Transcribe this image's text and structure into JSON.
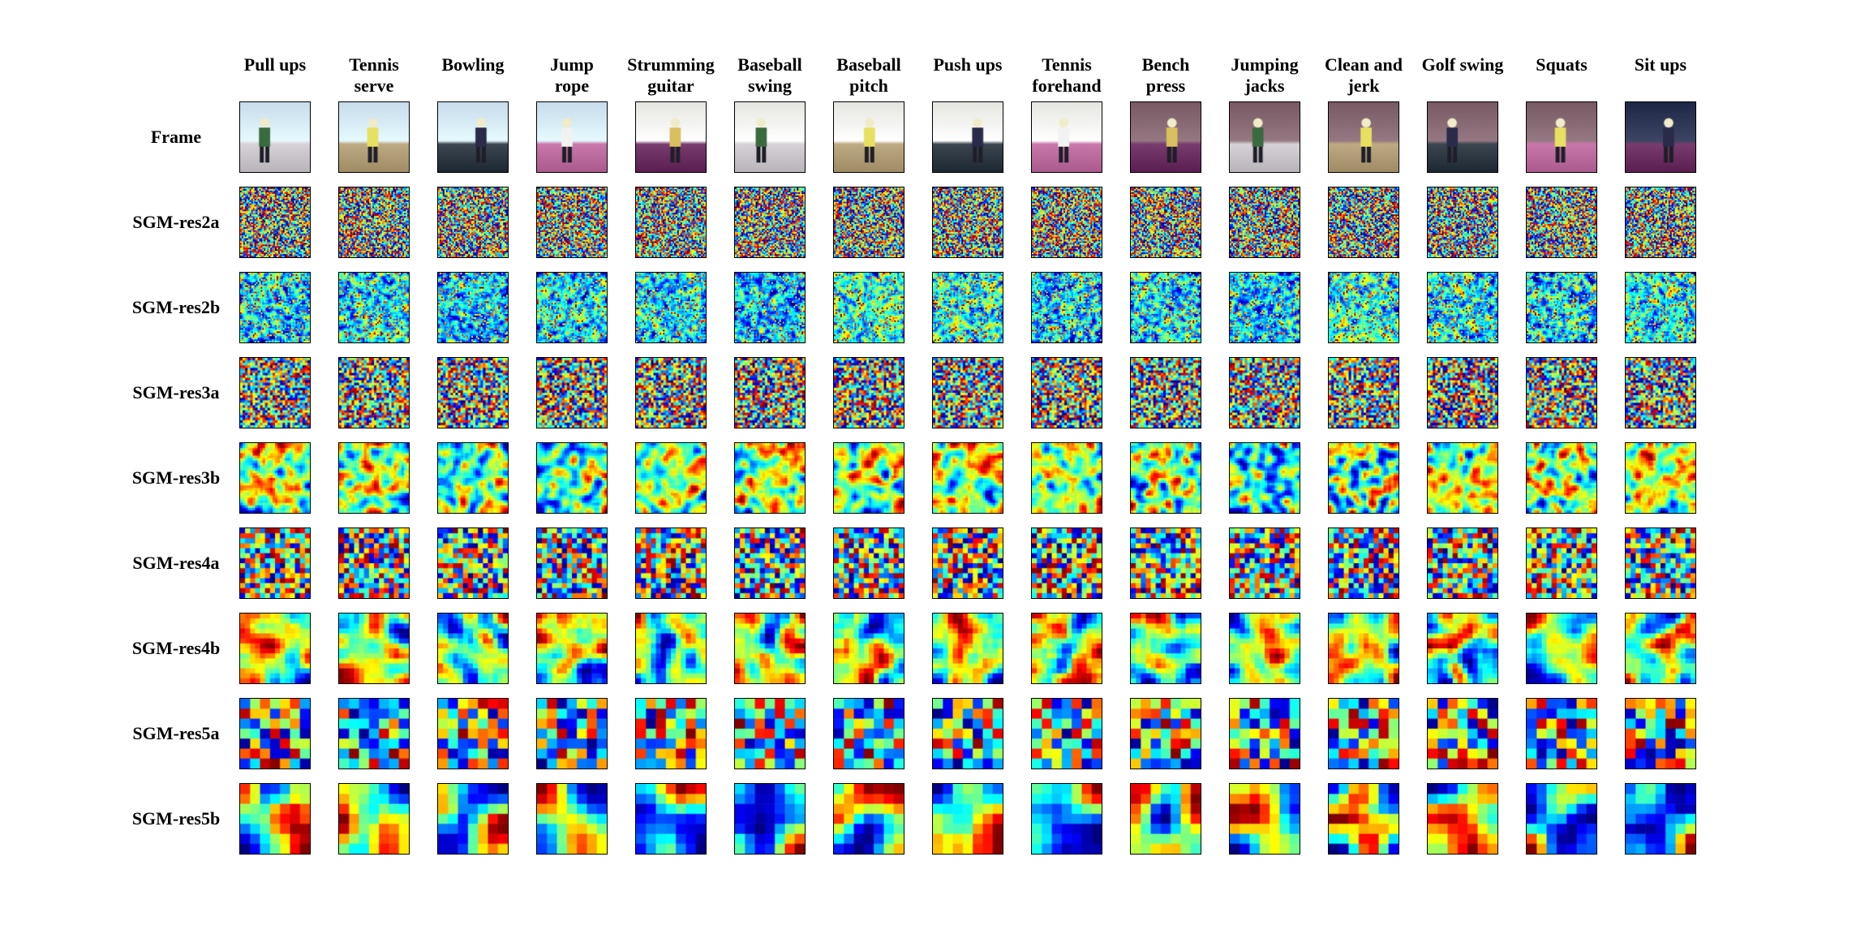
{
  "figure": {
    "columns": [
      "Pull ups",
      "Tennis\nserve",
      "Bowling",
      "Jump\nrope",
      "Strumming\nguitar",
      "Baseball\nswing",
      "Baseball\npitch",
      "Push ups",
      "Tennis\nforehand",
      "Bench\npress",
      "Jumping\njacks",
      "Clean and\njerk",
      "Golf swing",
      "Squats",
      "Sit ups"
    ],
    "rows": [
      {
        "label": "Frame",
        "kind": "frame"
      },
      {
        "label": "SGM-res2a",
        "kind": "noise",
        "grid": 56
      },
      {
        "label": "SGM-res2b",
        "kind": "edges",
        "grid": 56
      },
      {
        "label": "SGM-res3a",
        "kind": "noise",
        "grid": 28
      },
      {
        "label": "SGM-res3b",
        "kind": "smooth",
        "grid": 28
      },
      {
        "label": "SGM-res4a",
        "kind": "noise",
        "grid": 14
      },
      {
        "label": "SGM-res4b",
        "kind": "smooth",
        "grid": 14
      },
      {
        "label": "SGM-res5a",
        "kind": "noise",
        "grid": 7
      },
      {
        "label": "SGM-res5b",
        "kind": "smooth",
        "grid": 7
      }
    ],
    "colormap": "jet"
  }
}
